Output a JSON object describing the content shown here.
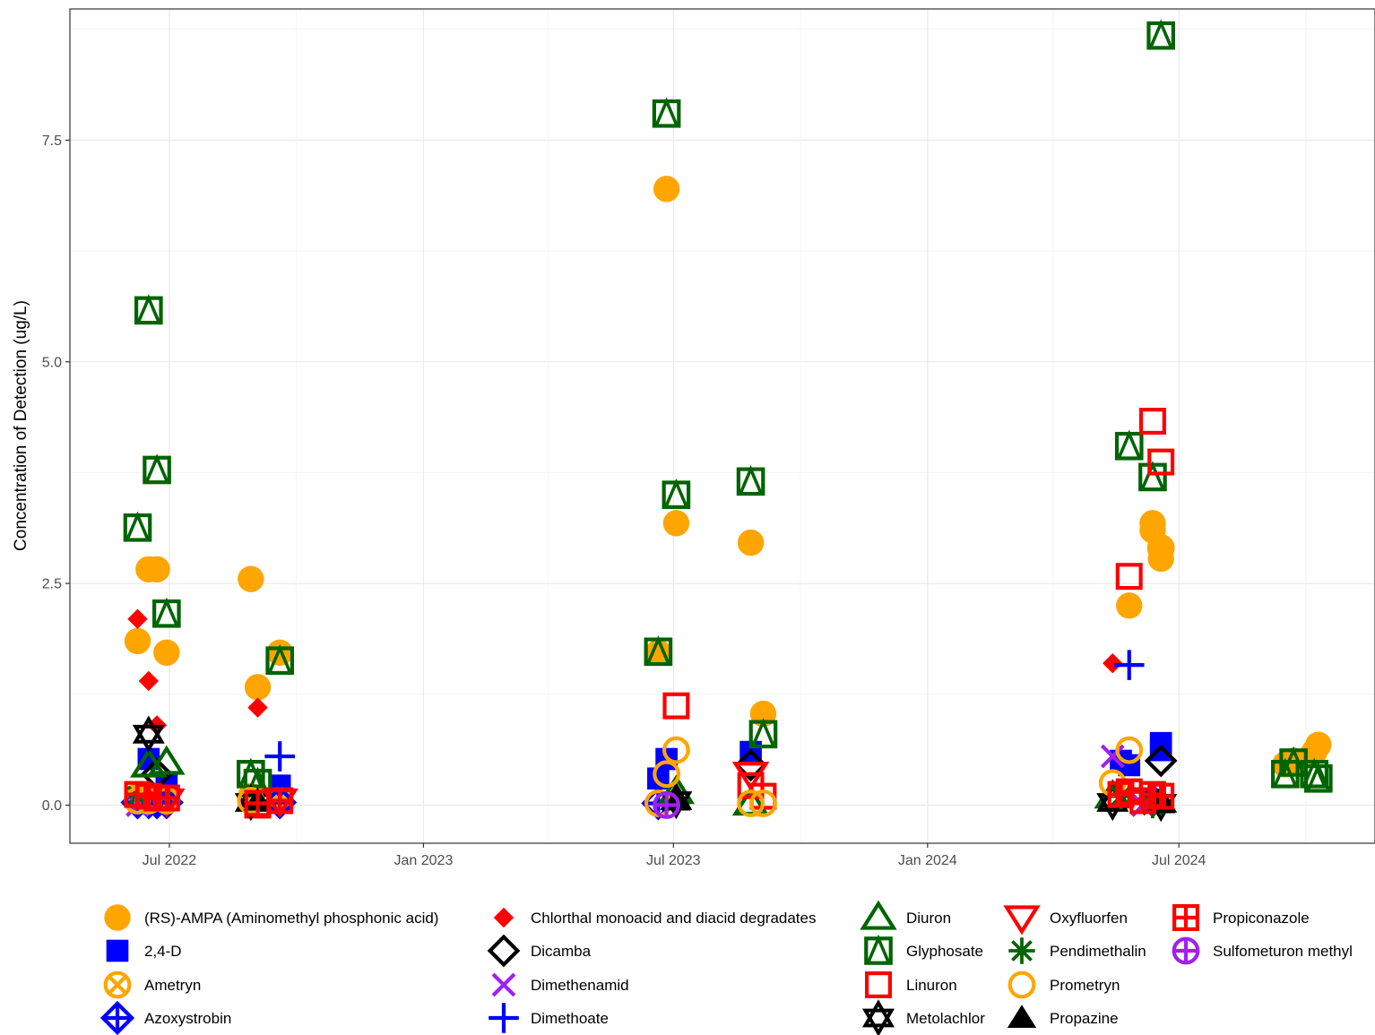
{
  "chart_data": {
    "type": "scatter",
    "title": "",
    "xlabel": "",
    "ylabel": "Concentration of Detection (ug/L)",
    "x_axis": {
      "type": "date",
      "range": [
        "2022-04-20",
        "2024-11-20"
      ],
      "ticks": [
        {
          "date": "2022-07-01",
          "label": "Jul 2022"
        },
        {
          "date": "2023-01-01",
          "label": "Jan 2023"
        },
        {
          "date": "2023-07-01",
          "label": "Jul 2023"
        },
        {
          "date": "2024-01-01",
          "label": "Jan 2024"
        },
        {
          "date": "2024-07-01",
          "label": "Jul 2024"
        }
      ]
    },
    "y_axis": {
      "range": [
        -0.43,
        8.98
      ],
      "ticks": [
        {
          "value": 0.0,
          "label": "0.0"
        },
        {
          "value": 2.5,
          "label": "2.5"
        },
        {
          "value": 5.0,
          "label": "5.0"
        },
        {
          "value": 7.5,
          "label": "7.5"
        }
      ]
    },
    "grid": true,
    "legend_position": "bottom",
    "series": [
      {
        "name": "(RS)-AMPA (Aminomethyl phosphonic acid)",
        "shape": "circle-filled",
        "color": "#FFA500",
        "points": [
          [
            "2022-06-08",
            1.85
          ],
          [
            "2022-06-16",
            2.66
          ],
          [
            "2022-06-22",
            2.66
          ],
          [
            "2022-06-29",
            1.72
          ],
          [
            "2022-06-08",
            0.1
          ],
          [
            "2022-06-29",
            0.1
          ],
          [
            "2022-08-29",
            2.55
          ],
          [
            "2022-09-03",
            1.33
          ],
          [
            "2022-08-29",
            0.1
          ],
          [
            "2022-09-19",
            1.72
          ],
          [
            "2022-09-19",
            0.1
          ],
          [
            "2023-06-26",
            6.95
          ],
          [
            "2023-07-03",
            3.18
          ],
          [
            "2023-06-20",
            1.72
          ],
          [
            "2023-08-26",
            2.96
          ],
          [
            "2023-09-04",
            1.03
          ],
          [
            "2024-05-26",
            2.25
          ],
          [
            "2024-06-12",
            3.18
          ],
          [
            "2024-06-12",
            3.1
          ],
          [
            "2024-06-18",
            2.89
          ],
          [
            "2024-06-18",
            2.78
          ],
          [
            "2024-09-16",
            0.46
          ],
          [
            "2024-09-22",
            0.5
          ],
          [
            "2024-10-07",
            0.6
          ],
          [
            "2024-10-10",
            0.68
          ]
        ]
      },
      {
        "name": "2,4-D",
        "shape": "square-filled",
        "color": "#0000FF",
        "points": [
          [
            "2022-06-16",
            0.52
          ],
          [
            "2022-06-29",
            0.22
          ],
          [
            "2022-09-19",
            0.22
          ],
          [
            "2023-06-20",
            0.3
          ],
          [
            "2023-06-26",
            0.52
          ],
          [
            "2023-08-26",
            0.6
          ],
          [
            "2024-05-20",
            0.5
          ],
          [
            "2024-05-26",
            0.45
          ],
          [
            "2024-06-18",
            0.7
          ],
          [
            "2024-06-18",
            0.62
          ]
        ]
      },
      {
        "name": "Ametryn",
        "shape": "circle-x-open",
        "color": "#FFA500",
        "points": [
          [
            "2022-06-08",
            0.05
          ],
          [
            "2022-08-29",
            0.08
          ],
          [
            "2022-09-19",
            0.05
          ]
        ]
      },
      {
        "name": "Azoxystrobin",
        "shape": "diamond-plus-open",
        "color": "#0000FF",
        "points": [
          [
            "2022-06-08",
            0.03
          ],
          [
            "2022-06-16",
            0.03
          ],
          [
            "2022-06-22",
            0.03
          ],
          [
            "2022-06-29",
            0.03
          ],
          [
            "2022-09-19",
            0.03
          ],
          [
            "2023-06-20",
            0.02
          ],
          [
            "2024-06-12",
            0.05
          ]
        ]
      },
      {
        "name": "Chlorthal monoacid and diacid degradates",
        "shape": "diamond-filled",
        "color": "#FF0000",
        "points": [
          [
            "2022-06-08",
            2.1
          ],
          [
            "2022-06-16",
            1.4
          ],
          [
            "2022-06-22",
            0.9
          ],
          [
            "2022-09-03",
            1.1
          ],
          [
            "2024-05-14",
            1.6
          ]
        ]
      },
      {
        "name": "Dicamba",
        "shape": "diamond-open",
        "color": "#000000",
        "points": [
          [
            "2022-06-22",
            0.35
          ],
          [
            "2023-08-26",
            0.45
          ],
          [
            "2024-06-18",
            0.5
          ]
        ]
      },
      {
        "name": "Dimethenamid",
        "shape": "x",
        "color": "#A020F0",
        "points": [
          [
            "2022-06-08",
            0.0
          ],
          [
            "2024-05-14",
            0.55
          ],
          [
            "2024-06-05",
            0.0
          ]
        ]
      },
      {
        "name": "Dimethoate",
        "shape": "plus",
        "color": "#0000FF",
        "points": [
          [
            "2022-09-19",
            0.55
          ],
          [
            "2024-05-26",
            1.58
          ]
        ]
      },
      {
        "name": "Diuron",
        "shape": "triangle-open",
        "color": "#006400",
        "points": [
          [
            "2022-06-16",
            0.45
          ],
          [
            "2022-06-29",
            0.48
          ],
          [
            "2023-07-03",
            0.15
          ],
          [
            "2023-08-26",
            0.02
          ],
          [
            "2024-05-14",
            0.1
          ]
        ]
      },
      {
        "name": "Glyphosate",
        "shape": "square-triangle-open",
        "color": "#006400",
        "points": [
          [
            "2022-06-08",
            3.13
          ],
          [
            "2022-06-16",
            5.58
          ],
          [
            "2022-06-22",
            3.78
          ],
          [
            "2022-06-29",
            2.16
          ],
          [
            "2022-08-29",
            0.35
          ],
          [
            "2022-09-03",
            0.25
          ],
          [
            "2022-09-19",
            1.63
          ],
          [
            "2023-06-20",
            1.73
          ],
          [
            "2023-06-26",
            7.8
          ],
          [
            "2023-07-03",
            3.5
          ],
          [
            "2023-08-26",
            3.65
          ],
          [
            "2023-09-04",
            0.8
          ],
          [
            "2024-05-26",
            4.05
          ],
          [
            "2024-06-12",
            3.7
          ],
          [
            "2024-06-18",
            8.68
          ],
          [
            "2024-09-16",
            0.35
          ],
          [
            "2024-09-22",
            0.48
          ],
          [
            "2024-10-07",
            0.35
          ],
          [
            "2024-10-10",
            0.3
          ]
        ]
      },
      {
        "name": "Linuron",
        "shape": "square-open",
        "color": "#FF0000",
        "points": [
          [
            "2022-09-03",
            0.0
          ],
          [
            "2023-07-03",
            1.12
          ],
          [
            "2023-08-26",
            0.22
          ],
          [
            "2023-09-04",
            0.1
          ],
          [
            "2024-05-26",
            2.58
          ],
          [
            "2024-06-12",
            4.33
          ],
          [
            "2024-06-18",
            3.87
          ]
        ]
      },
      {
        "name": "Metolachlor",
        "shape": "star-open",
        "color": "#000000",
        "points": [
          [
            "2022-06-16",
            0.8
          ],
          [
            "2022-08-29",
            0.03
          ],
          [
            "2023-07-03",
            0.05
          ],
          [
            "2024-05-14",
            0.03
          ],
          [
            "2024-06-18",
            0.02
          ]
        ]
      },
      {
        "name": "Oxyfluorfen",
        "shape": "triangle-down-open",
        "color": "#FF0000",
        "points": [
          [
            "2022-06-29",
            0.05
          ],
          [
            "2022-09-19",
            0.05
          ],
          [
            "2023-08-26",
            0.35
          ]
        ]
      },
      {
        "name": "Pendimethalin",
        "shape": "asterisk",
        "color": "#006400",
        "points": [
          [
            "2022-06-08",
            0.1
          ],
          [
            "2024-05-20",
            0.1
          ],
          [
            "2024-06-12",
            0.0
          ]
        ]
      },
      {
        "name": "Prometryn",
        "shape": "circle-open",
        "color": "#FFA500",
        "points": [
          [
            "2022-06-08",
            0.05
          ],
          [
            "2022-06-16",
            0.05
          ],
          [
            "2022-06-29",
            0.05
          ],
          [
            "2022-08-29",
            0.05
          ],
          [
            "2023-06-20",
            0.02
          ],
          [
            "2023-06-26",
            0.35
          ],
          [
            "2023-07-03",
            0.62
          ],
          [
            "2023-08-26",
            0.02
          ],
          [
            "2023-09-04",
            0.02
          ],
          [
            "2024-05-14",
            0.25
          ],
          [
            "2024-05-26",
            0.62
          ],
          [
            "2024-06-18",
            2.9
          ]
        ]
      },
      {
        "name": "Propazine",
        "shape": "triangle-filled",
        "color": "#000000",
        "points": [
          [
            "2022-09-03",
            0.05
          ],
          [
            "2023-07-03",
            0.05
          ],
          [
            "2024-06-18",
            0.02
          ]
        ]
      },
      {
        "name": "Propiconazole",
        "shape": "square-plus-open",
        "color": "#FF0000",
        "points": [
          [
            "2022-06-08",
            0.12
          ],
          [
            "2022-06-16",
            0.1
          ],
          [
            "2022-06-22",
            0.08
          ],
          [
            "2022-06-29",
            0.08
          ],
          [
            "2022-09-03",
            0.02
          ],
          [
            "2022-09-19",
            0.05
          ],
          [
            "2024-05-20",
            0.12
          ],
          [
            "2024-05-26",
            0.15
          ],
          [
            "2024-06-05",
            0.05
          ],
          [
            "2024-06-12",
            0.12
          ],
          [
            "2024-06-18",
            0.1
          ]
        ]
      },
      {
        "name": "Sulfometuron methyl",
        "shape": "circle-plus-open",
        "color": "#A020F0",
        "points": [
          [
            "2023-06-26",
            0.0
          ]
        ]
      }
    ]
  }
}
